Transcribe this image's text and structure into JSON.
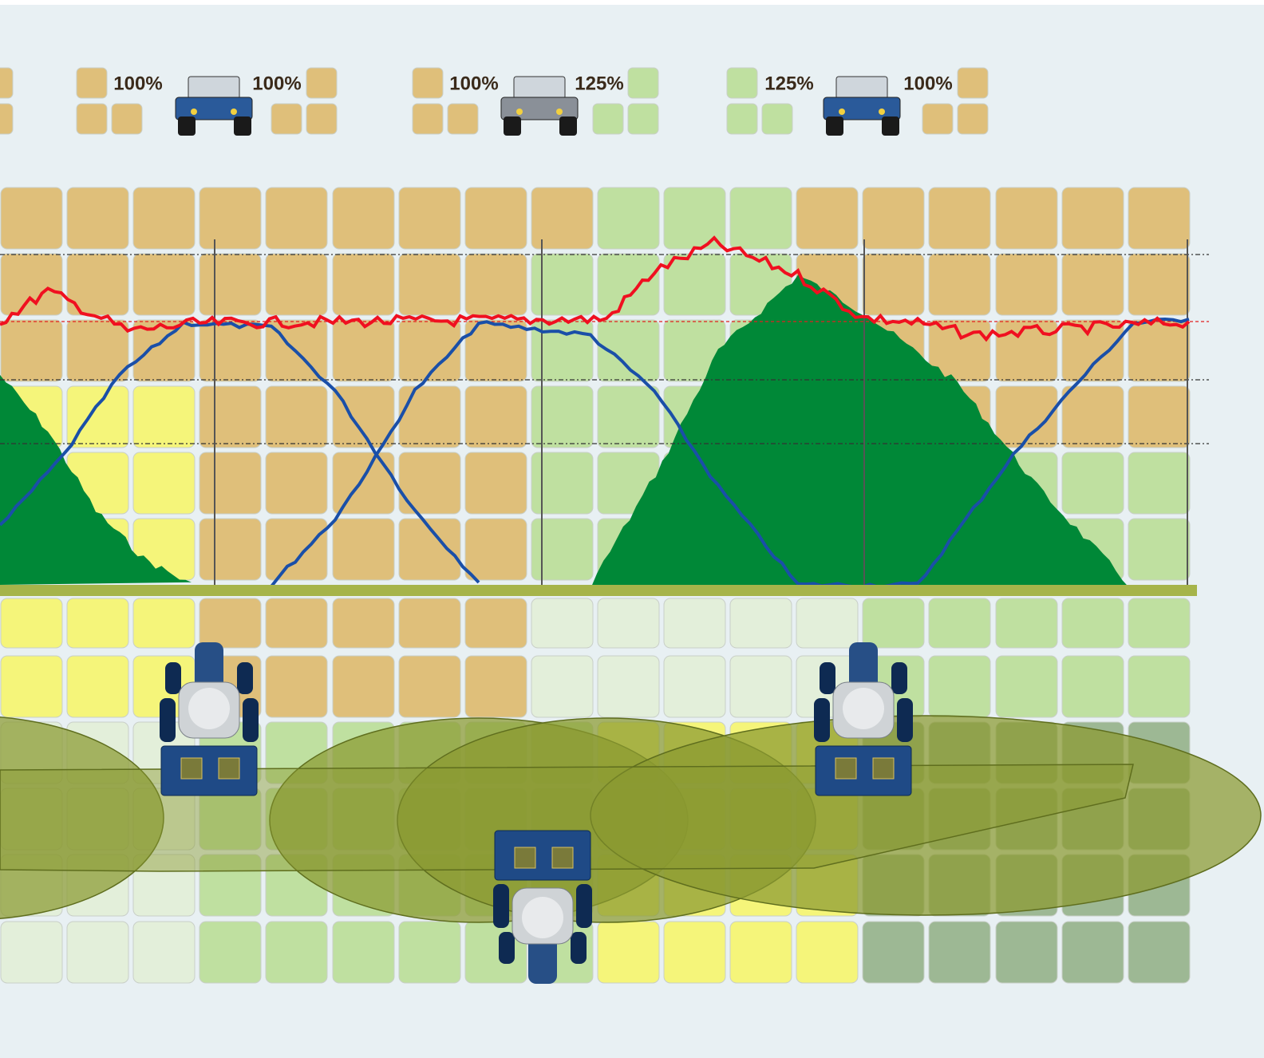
{
  "rate_labels": [
    "100%",
    "100%",
    "100%",
    "125%",
    "125%",
    "100%"
  ]
}
